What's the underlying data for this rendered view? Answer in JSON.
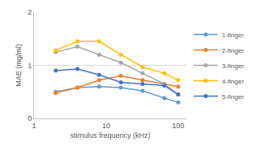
{
  "chart_data": {
    "type": "line",
    "x_label": "stimulus frequency (kHz)",
    "y_label": "MAE (mg/ml)",
    "x": [
      2,
      4,
      8,
      16,
      32,
      64,
      100
    ],
    "series": [
      {
        "name": "1-finger",
        "color": "#5b9bd5",
        "values": [
          0.5,
          0.58,
          0.6,
          0.58,
          0.52,
          0.38,
          0.3
        ]
      },
      {
        "name": "2-finger",
        "color": "#ed7d31",
        "values": [
          0.48,
          0.58,
          0.72,
          0.8,
          0.72,
          0.65,
          0.6
        ]
      },
      {
        "name": "3-finger",
        "color": "#a5a5a5",
        "values": [
          1.25,
          1.35,
          1.2,
          1.05,
          0.85,
          0.65,
          0.45
        ]
      },
      {
        "name": "4-finger",
        "color": "#ffc000",
        "values": [
          1.28,
          1.45,
          1.45,
          1.2,
          0.97,
          0.85,
          0.72
        ]
      },
      {
        "name": "5-finger",
        "color": "#4472c4",
        "values": [
          0.9,
          0.93,
          0.82,
          0.68,
          0.65,
          0.62,
          0.45
        ]
      }
    ],
    "log": "x",
    "xlim": [
      1,
      130
    ],
    "xticks": [
      1,
      10,
      100
    ],
    "ylim": [
      0,
      2
    ],
    "yticks": [
      0,
      1,
      2
    ],
    "grid": true,
    "legend": "right",
    "marker": "circle",
    "line_style": "solid"
  }
}
